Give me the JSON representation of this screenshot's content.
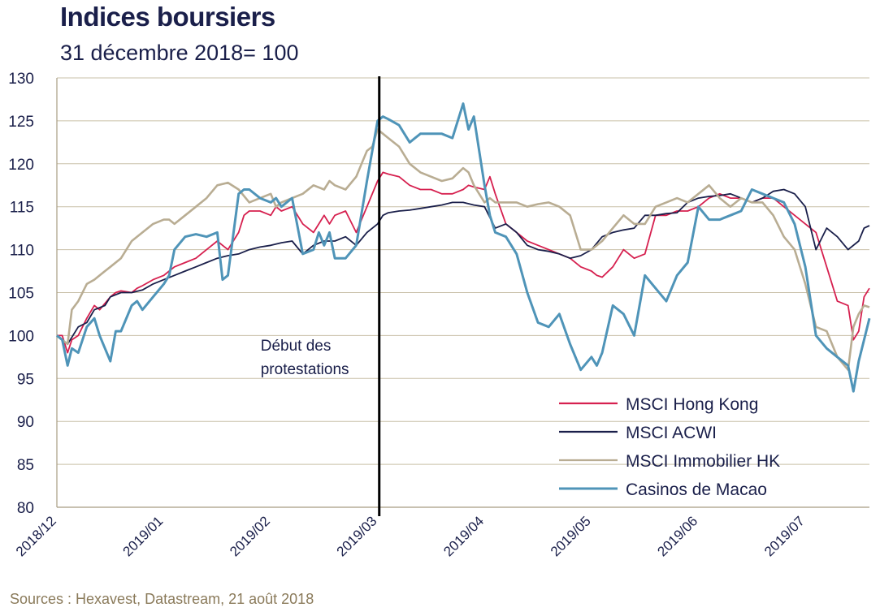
{
  "chart_data": {
    "type": "line",
    "title": "Indices boursiers",
    "subtitle": "31 décembre 2018= 100",
    "source": "Sources : Hexavest, Datastream, 21 août 2018",
    "ylim": [
      80,
      130
    ],
    "yticks": [
      80,
      85,
      90,
      95,
      100,
      105,
      110,
      115,
      120,
      125,
      130
    ],
    "xlim": [
      0,
      7.6
    ],
    "xticks": [
      {
        "pos": 0,
        "label": "2018/12"
      },
      {
        "pos": 1,
        "label": "2019/01"
      },
      {
        "pos": 2,
        "label": "2019/02"
      },
      {
        "pos": 3,
        "label": "2019/03"
      },
      {
        "pos": 4,
        "label": "2019/04"
      },
      {
        "pos": 5,
        "label": "2019/05"
      },
      {
        "pos": 6,
        "label": "2019/06"
      },
      {
        "pos": 7,
        "label": "2019/07"
      }
    ],
    "grid": true,
    "legend": "bottom-right",
    "annotation": {
      "x": 3.0,
      "lines": [
        "Début des",
        "protestations"
      ]
    },
    "series": [
      {
        "name": "MSCI Hong Kong",
        "color": "#d6204f",
        "x": [
          0,
          0.05,
          0.1,
          0.14,
          0.2,
          0.28,
          0.35,
          0.4,
          0.5,
          0.55,
          0.6,
          0.7,
          0.75,
          0.8,
          0.9,
          1.0,
          1.05,
          1.1,
          1.2,
          1.3,
          1.4,
          1.5,
          1.55,
          1.6,
          1.7,
          1.75,
          1.8,
          1.9,
          2.0,
          2.05,
          2.1,
          2.2,
          2.3,
          2.4,
          2.45,
          2.5,
          2.55,
          2.6,
          2.7,
          2.8,
          2.9,
          3.0,
          3.05,
          3.1,
          3.2,
          3.3,
          3.4,
          3.5,
          3.6,
          3.7,
          3.8,
          3.85,
          3.9,
          4.0,
          4.05,
          4.1,
          4.2,
          4.3,
          4.4,
          4.5,
          4.6,
          4.7,
          4.8,
          4.9,
          5.0,
          5.05,
          5.1,
          5.2,
          5.3,
          5.4,
          5.5,
          5.6,
          5.7,
          5.8,
          5.9,
          6.0,
          6.1,
          6.2,
          6.3,
          6.4,
          6.5,
          6.6,
          6.7,
          6.8,
          6.9,
          7.0,
          7.1,
          7.2,
          7.3,
          7.4,
          7.45,
          7.5,
          7.55,
          7.6
        ],
        "values": [
          100,
          100,
          98,
          99.5,
          100,
          102,
          103.5,
          103,
          104.5,
          105,
          105.2,
          105,
          105.5,
          105.8,
          106.5,
          107,
          107.5,
          108,
          108.5,
          109,
          110,
          111,
          110.5,
          110,
          112,
          114,
          114.5,
          114.5,
          114,
          115,
          114.5,
          115,
          113,
          112,
          113,
          114,
          113,
          114,
          114.5,
          112,
          115,
          118,
          119,
          118.8,
          118.5,
          117.5,
          117,
          117,
          116.5,
          116.5,
          117,
          117.5,
          117.3,
          117,
          118.5,
          116.5,
          113,
          112,
          111,
          110.5,
          110,
          109.5,
          109,
          108,
          107.5,
          107,
          106.8,
          108,
          110,
          109,
          109.5,
          114,
          114,
          114.5,
          114.5,
          115,
          116,
          116.5,
          116,
          116,
          115.5,
          116,
          116,
          115,
          114,
          113,
          112,
          108,
          104,
          103.5,
          99.5,
          100.5,
          104.5,
          105.5
        ]
      },
      {
        "name": "MSCI ACWI",
        "color": "#1a1f4a",
        "x": [
          0,
          0.1,
          0.2,
          0.28,
          0.35,
          0.45,
          0.5,
          0.6,
          0.7,
          0.8,
          0.9,
          1.0,
          1.1,
          1.2,
          1.3,
          1.4,
          1.5,
          1.6,
          1.7,
          1.8,
          1.9,
          2.0,
          2.1,
          2.2,
          2.3,
          2.4,
          2.5,
          2.6,
          2.7,
          2.8,
          2.9,
          3.0,
          3.05,
          3.1,
          3.2,
          3.3,
          3.4,
          3.5,
          3.6,
          3.7,
          3.8,
          3.9,
          4.0,
          4.1,
          4.2,
          4.3,
          4.4,
          4.5,
          4.6,
          4.7,
          4.8,
          4.9,
          5.0,
          5.1,
          5.2,
          5.3,
          5.4,
          5.5,
          5.6,
          5.7,
          5.8,
          5.9,
          6.0,
          6.1,
          6.2,
          6.3,
          6.4,
          6.5,
          6.6,
          6.7,
          6.8,
          6.9,
          7.0,
          7.1,
          7.2,
          7.3,
          7.4,
          7.5,
          7.55,
          7.6
        ],
        "values": [
          100,
          99,
          101,
          101.5,
          103,
          103.5,
          104.5,
          105,
          105,
          105.3,
          106,
          106.5,
          107,
          107.5,
          108,
          108.5,
          109,
          109.3,
          109.5,
          110,
          110.3,
          110.5,
          110.8,
          111,
          109.5,
          110.5,
          111,
          111,
          111.5,
          110.5,
          112,
          113,
          114,
          114.3,
          114.5,
          114.6,
          114.8,
          115,
          115.2,
          115.5,
          115.5,
          115.2,
          115,
          112.5,
          113,
          112,
          110.5,
          110,
          109.8,
          109.5,
          109,
          109.3,
          110,
          111.5,
          112,
          112.3,
          112.5,
          114,
          114,
          114.2,
          114.3,
          115.5,
          116,
          116.2,
          116.3,
          116.5,
          116,
          115.5,
          116,
          116.8,
          117,
          116.5,
          115,
          110,
          112.5,
          111.5,
          110,
          111,
          112.5,
          112.8
        ]
      },
      {
        "name": "MSCI Immobilier HK",
        "color": "#b9ad93",
        "x": [
          0,
          0.1,
          0.14,
          0.2,
          0.28,
          0.35,
          0.45,
          0.5,
          0.6,
          0.7,
          0.8,
          0.9,
          1.0,
          1.05,
          1.1,
          1.2,
          1.3,
          1.4,
          1.5,
          1.6,
          1.7,
          1.8,
          1.9,
          2.0,
          2.05,
          2.1,
          2.2,
          2.3,
          2.4,
          2.5,
          2.55,
          2.6,
          2.7,
          2.8,
          2.85,
          2.9,
          2.95,
          3.0,
          3.05,
          3.1,
          3.2,
          3.3,
          3.4,
          3.5,
          3.6,
          3.7,
          3.8,
          3.85,
          3.9,
          4.0,
          4.05,
          4.1,
          4.2,
          4.3,
          4.4,
          4.5,
          4.6,
          4.7,
          4.8,
          4.9,
          5.0,
          5.1,
          5.2,
          5.3,
          5.4,
          5.5,
          5.6,
          5.7,
          5.8,
          5.9,
          6.0,
          6.1,
          6.2,
          6.3,
          6.4,
          6.5,
          6.6,
          6.7,
          6.8,
          6.9,
          7.0,
          7.1,
          7.2,
          7.3,
          7.4,
          7.45,
          7.5,
          7.55,
          7.6
        ],
        "values": [
          100,
          99,
          103,
          104,
          106,
          106.5,
          107.5,
          108,
          109,
          111,
          112,
          113,
          113.5,
          113.5,
          113,
          114,
          115,
          116,
          117.5,
          117.8,
          117,
          115.5,
          116,
          116.5,
          115,
          115.5,
          116,
          116.5,
          117.5,
          117,
          118,
          117.5,
          117,
          118.5,
          120,
          121.5,
          122,
          124,
          123.5,
          123,
          122,
          120,
          119,
          118.5,
          118,
          118.3,
          119.5,
          119,
          117.5,
          115.5,
          116,
          115.5,
          115.5,
          115.5,
          115,
          115.3,
          115.5,
          115,
          114,
          110,
          110,
          111,
          112.5,
          114,
          113,
          113,
          115,
          115.5,
          116,
          115.5,
          116.5,
          117.5,
          116,
          115,
          116,
          115.5,
          115.5,
          114,
          111.5,
          110,
          106,
          101,
          100.5,
          97.5,
          96,
          101,
          102.5,
          103.5,
          103.3
        ]
      },
      {
        "name": "Casinos de Macao",
        "color": "#4f94b8",
        "x": [
          0,
          0.05,
          0.1,
          0.14,
          0.2,
          0.28,
          0.35,
          0.4,
          0.5,
          0.55,
          0.6,
          0.7,
          0.75,
          0.8,
          0.9,
          1.0,
          1.05,
          1.1,
          1.2,
          1.3,
          1.4,
          1.5,
          1.55,
          1.6,
          1.7,
          1.75,
          1.8,
          1.9,
          2.0,
          2.05,
          2.1,
          2.2,
          2.3,
          2.4,
          2.45,
          2.5,
          2.55,
          2.6,
          2.7,
          2.8,
          2.9,
          3.0,
          3.05,
          3.1,
          3.2,
          3.3,
          3.4,
          3.5,
          3.6,
          3.7,
          3.8,
          3.85,
          3.9,
          4.0,
          4.05,
          4.1,
          4.2,
          4.3,
          4.4,
          4.5,
          4.6,
          4.7,
          4.8,
          4.9,
          5.0,
          5.05,
          5.1,
          5.2,
          5.3,
          5.4,
          5.5,
          5.6,
          5.7,
          5.8,
          5.9,
          6.0,
          6.1,
          6.2,
          6.3,
          6.4,
          6.5,
          6.6,
          6.7,
          6.8,
          6.9,
          7.0,
          7.1,
          7.2,
          7.3,
          7.4,
          7.45,
          7.5,
          7.55,
          7.6
        ],
        "values": [
          100,
          99.5,
          96.5,
          98.5,
          98,
          101,
          102,
          100,
          97,
          100.5,
          100.5,
          103.5,
          104,
          103,
          104.5,
          106,
          107,
          110,
          111.5,
          111.8,
          111.5,
          112,
          106.5,
          107,
          116.5,
          117,
          117,
          116,
          115.5,
          116,
          115,
          116,
          109.5,
          110,
          112,
          110.5,
          112,
          109,
          109,
          110.5,
          118,
          125,
          125.5,
          125.2,
          124.5,
          122.5,
          123.5,
          123.5,
          123.5,
          123,
          127,
          124,
          125.5,
          117.5,
          114,
          112,
          111.5,
          109.5,
          105,
          101.5,
          101,
          102.5,
          99,
          96,
          97.5,
          96.5,
          98,
          103.5,
          102.5,
          100,
          107,
          105.5,
          104,
          107,
          108.5,
          115,
          113.5,
          113.5,
          114,
          114.5,
          117,
          116.5,
          116,
          115.5,
          113,
          108,
          100,
          98.5,
          97.5,
          96.5,
          93.5,
          97,
          99.5,
          102
        ]
      }
    ]
  }
}
